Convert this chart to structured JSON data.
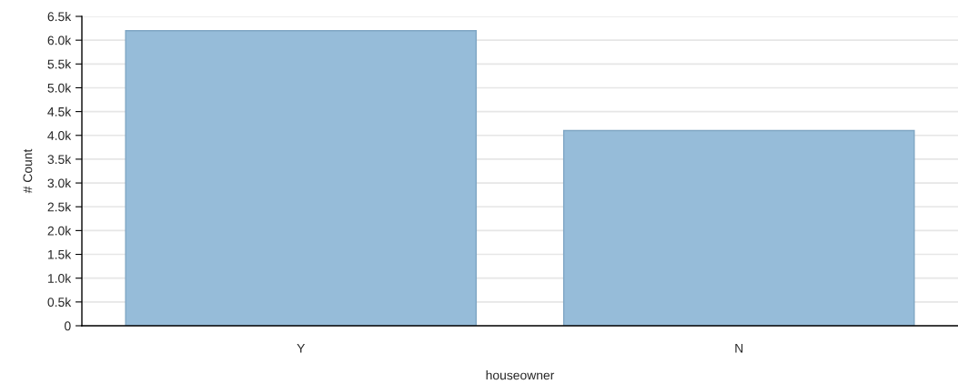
{
  "chart_data": {
    "type": "bar",
    "xlabel": "houseowner",
    "ylabel": "# Count",
    "categories": [
      "Y",
      "N"
    ],
    "values": [
      6200,
      4100
    ],
    "color": "#96bcd9",
    "ylim": [
      0,
      6500
    ],
    "yticks": [
      0,
      {
        "value": 500,
        "label": "0.5k"
      },
      {
        "value": 1000,
        "label": "1.0k"
      },
      {
        "value": 1500,
        "label": "1.5k"
      },
      {
        "value": 2000,
        "label": "2.0k"
      },
      {
        "value": 2500,
        "label": "2.5k"
      },
      {
        "value": 3000,
        "label": "3.0k"
      },
      {
        "value": 3500,
        "label": "3.5k"
      },
      {
        "value": 4000,
        "label": "4.0k"
      },
      {
        "value": 4500,
        "label": "4.5k"
      },
      {
        "value": 5000,
        "label": "5.0k"
      },
      {
        "value": 5500,
        "label": "5.5k"
      },
      {
        "value": 6000,
        "label": "6.0k"
      },
      {
        "value": 6500,
        "label": "6.5k"
      }
    ],
    "grid": "y"
  }
}
